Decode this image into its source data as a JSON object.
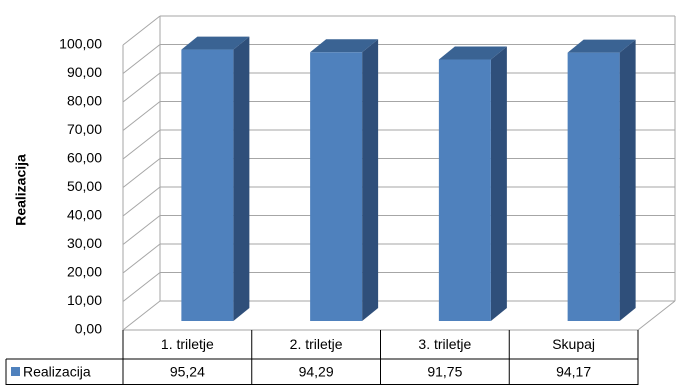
{
  "chart_data": {
    "type": "bar",
    "categories": [
      "1. triletje",
      "2. triletje",
      "3. triletje",
      "Skupaj"
    ],
    "series": [
      {
        "name": "Realizacija",
        "values": [
          95.24,
          94.29,
          91.75,
          94.17
        ],
        "value_labels": [
          "95,24",
          "94,29",
          "91,75",
          "94,17"
        ]
      }
    ],
    "ylabel": "Realizacija",
    "ylim": [
      0,
      100
    ],
    "y_ticks": [
      "0,00",
      "10,00",
      "20,00",
      "30,00",
      "40,00",
      "50,00",
      "60,00",
      "70,00",
      "80,00",
      "90,00",
      "100,00"
    ],
    "grid": true,
    "data_table": true,
    "three_d": true,
    "colors": {
      "bar_front": "#4F81BD",
      "bar_side": "#2F4F7A",
      "bar_top": "#3A6393",
      "grid": "#A6A6A6",
      "table_border": "#000000"
    }
  }
}
